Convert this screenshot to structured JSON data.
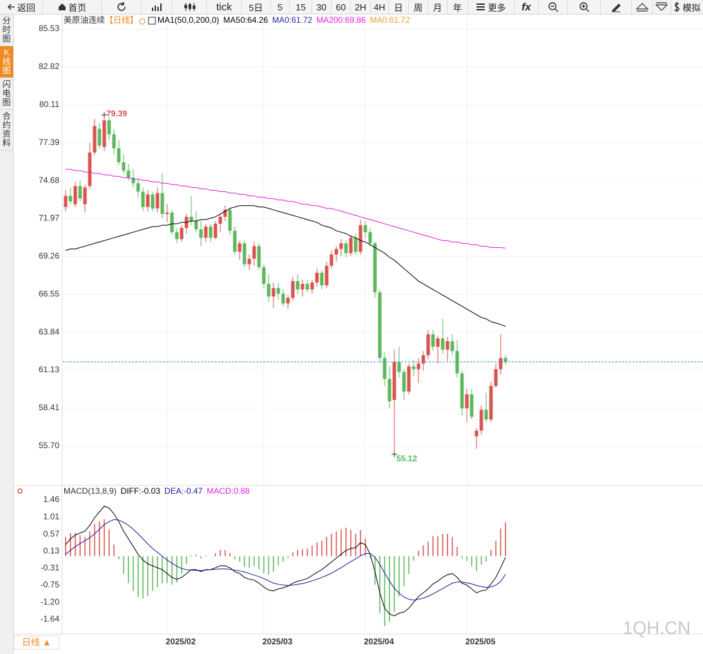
{
  "toolbar": {
    "items": [
      "返回",
      "首页",
      "tick",
      "5日",
      "5",
      "15",
      "30",
      "60",
      "2H",
      "4H",
      "日",
      "周",
      "月",
      "年",
      "更多",
      "fx",
      "模拟"
    ]
  },
  "sidebar": {
    "items": [
      "分时图",
      "K线图",
      "闪电图",
      "合约资料"
    ],
    "active": 1
  },
  "footer": {
    "tab": "日线 ▲",
    "watermark": "1QH.CN"
  },
  "chart_data": [
    {
      "type": "candlestick",
      "title": "美原油连续",
      "period": "【日线】",
      "legend": [
        {
          "text": "MA1(50,0,200,0)",
          "color": "#000000"
        },
        {
          "text": "MA50:64.26",
          "color": "#000000"
        },
        {
          "text": "MA0:61.72",
          "color": "#2a2a9a"
        },
        {
          "text": "MA200:69.86",
          "color": "#e020e0"
        },
        {
          "text": "MA0:61.72",
          "color": "#f0a030"
        }
      ],
      "up_color": "#d9534f",
      "down_color": "#5cb85c",
      "grid": true,
      "ohlc": {
        "open": [
          72.8,
          73.6,
          73.0,
          74.3,
          73.0,
          74.3,
          76.7,
          78.4,
          77.1,
          79.0,
          78.0,
          77.0,
          76.0,
          75.4,
          74.9,
          74.5,
          73.9,
          72.8,
          73.7,
          72.7,
          73.8,
          72.3,
          72.4,
          71.0,
          70.5,
          71.3,
          72.1,
          71.8,
          71.2,
          70.6,
          71.4,
          70.6,
          71.6,
          72.1,
          72.6,
          71.1,
          69.6,
          70.2,
          68.7,
          69.1,
          70.0,
          68.5,
          67.3,
          66.4,
          67.0,
          66.6,
          65.9,
          66.3,
          67.5,
          66.9,
          67.3,
          66.9,
          67.4,
          68.1,
          67.2,
          68.6,
          69.4,
          69.8,
          70.2,
          69.5,
          70.6,
          69.6,
          71.5,
          71.0,
          70.2,
          66.7,
          62.0,
          60.5,
          59.0,
          61.7,
          61.0,
          59.6,
          61.4,
          61.2,
          61.6,
          62.2,
          63.7,
          62.8,
          63.4,
          62.6,
          63.2,
          62.5,
          60.9,
          58.4,
          59.4,
          56.4,
          56.8,
          58.3,
          57.6,
          60.0,
          61.2,
          62.0
        ],
        "high": [
          74.0,
          74.2,
          74.6,
          74.7,
          74.4,
          77.4,
          79.1,
          78.8,
          79.39,
          79.2,
          78.4,
          77.6,
          76.6,
          75.9,
          75.5,
          74.8,
          74.2,
          74.0,
          73.9,
          74.2,
          75.2,
          73.0,
          72.6,
          71.3,
          71.5,
          72.3,
          73.6,
          72.5,
          71.8,
          71.6,
          71.6,
          71.8,
          72.3,
          72.9,
          72.8,
          71.4,
          70.4,
          70.4,
          69.4,
          70.3,
          70.2,
          68.7,
          68.0,
          67.4,
          67.4,
          66.9,
          66.5,
          67.8,
          68.0,
          67.6,
          67.6,
          67.6,
          68.4,
          68.3,
          68.9,
          69.7,
          70.0,
          70.5,
          70.4,
          70.8,
          70.9,
          71.9,
          71.8,
          71.3,
          70.3,
          66.9,
          62.4,
          61.4,
          62.6,
          62.8,
          61.2,
          61.6,
          61.9,
          62.0,
          62.5,
          64.0,
          64.0,
          63.6,
          64.8,
          63.5,
          63.7,
          63.3,
          61.1,
          59.8,
          59.8,
          57.0,
          58.6,
          59.5,
          60.3,
          61.6,
          63.7,
          62.2
        ],
        "low": [
          72.5,
          73.0,
          72.8,
          73.2,
          72.4,
          74.1,
          76.5,
          77.0,
          76.8,
          77.6,
          76.6,
          75.8,
          75.2,
          74.7,
          74.2,
          73.5,
          72.5,
          72.5,
          72.5,
          72.4,
          72.0,
          71.7,
          70.8,
          70.2,
          70.3,
          70.9,
          71.5,
          71.0,
          70.0,
          70.3,
          70.3,
          70.5,
          71.0,
          71.8,
          70.8,
          69.4,
          69.0,
          68.5,
          68.3,
          68.6,
          68.3,
          67.0,
          66.0,
          65.6,
          66.2,
          65.7,
          65.5,
          66.1,
          66.6,
          66.4,
          66.7,
          66.6,
          67.1,
          66.9,
          67.0,
          68.4,
          68.9,
          69.3,
          69.2,
          69.3,
          69.4,
          69.4,
          70.6,
          70.0,
          66.3,
          61.7,
          60.0,
          58.4,
          55.12,
          60.6,
          59.0,
          59.4,
          60.7,
          60.2,
          61.1,
          61.9,
          62.5,
          61.6,
          62.3,
          61.8,
          62.2,
          60.6,
          57.9,
          57.4,
          57.6,
          55.5,
          56.5,
          57.4,
          57.4,
          59.9,
          60.8,
          61.5
        ],
        "close": [
          73.6,
          73.2,
          74.3,
          73.4,
          74.2,
          76.7,
          78.6,
          77.2,
          79.0,
          78.0,
          77.0,
          76.0,
          75.4,
          74.9,
          74.5,
          73.9,
          72.8,
          73.7,
          72.7,
          73.8,
          72.3,
          72.4,
          71.0,
          70.5,
          71.3,
          72.1,
          71.8,
          71.2,
          70.6,
          71.4,
          70.6,
          71.6,
          72.1,
          72.6,
          71.1,
          69.6,
          70.2,
          68.7,
          69.1,
          70.0,
          68.5,
          67.3,
          66.4,
          67.0,
          66.6,
          65.9,
          66.3,
          67.5,
          66.9,
          67.3,
          66.9,
          67.4,
          68.1,
          67.2,
          68.6,
          69.4,
          69.8,
          70.2,
          69.5,
          70.6,
          69.6,
          71.5,
          71.0,
          70.2,
          66.7,
          62.0,
          60.5,
          58.9,
          61.7,
          61.0,
          59.6,
          61.4,
          61.2,
          61.6,
          62.2,
          63.7,
          62.8,
          63.4,
          62.6,
          63.2,
          62.5,
          60.9,
          58.4,
          59.4,
          57.8,
          56.8,
          58.3,
          57.6,
          60.0,
          61.2,
          62.0,
          61.72
        ]
      },
      "series": [
        {
          "color": "#000000",
          "values": [
            69.7,
            69.8,
            69.8,
            69.9,
            70.0,
            70.1,
            70.2,
            70.3,
            70.4,
            70.5,
            70.6,
            70.7,
            70.8,
            70.9,
            71.0,
            71.1,
            71.2,
            71.3,
            71.4,
            71.4,
            71.5,
            71.5,
            71.6,
            71.6,
            71.7,
            71.7,
            71.8,
            71.8,
            71.9,
            71.9,
            72.0,
            72.1,
            72.3,
            72.5,
            72.7,
            72.8,
            72.9,
            72.9,
            72.9,
            72.9,
            72.8,
            72.8,
            72.7,
            72.6,
            72.5,
            72.4,
            72.3,
            72.2,
            72.1,
            72.0,
            71.9,
            71.8,
            71.7,
            71.5,
            71.4,
            71.3,
            71.1,
            71.0,
            70.9,
            70.7,
            70.6,
            70.4,
            70.3,
            70.1,
            69.9,
            69.7,
            69.5,
            69.2,
            69.0,
            68.7,
            68.4,
            68.1,
            67.8,
            67.5,
            67.3,
            67.1,
            66.9,
            66.7,
            66.5,
            66.3,
            66.1,
            65.9,
            65.7,
            65.5,
            65.3,
            65.1,
            64.9,
            64.8,
            64.6,
            64.5,
            64.4,
            64.26
          ]
        },
        {
          "color": "#e020e0",
          "values": [
            75.5,
            75.5,
            75.4,
            75.4,
            75.3,
            75.3,
            75.2,
            75.2,
            75.1,
            75.1,
            75.0,
            75.0,
            74.9,
            74.9,
            74.8,
            74.8,
            74.7,
            74.7,
            74.6,
            74.6,
            74.5,
            74.5,
            74.4,
            74.4,
            74.3,
            74.3,
            74.2,
            74.2,
            74.1,
            74.1,
            74.0,
            74.0,
            73.9,
            73.9,
            73.8,
            73.8,
            73.7,
            73.7,
            73.6,
            73.6,
            73.5,
            73.5,
            73.4,
            73.4,
            73.3,
            73.3,
            73.2,
            73.2,
            73.1,
            73.0,
            73.0,
            72.9,
            72.9,
            72.8,
            72.7,
            72.7,
            72.6,
            72.5,
            72.4,
            72.3,
            72.2,
            72.1,
            72.0,
            71.9,
            71.8,
            71.7,
            71.6,
            71.5,
            71.4,
            71.3,
            71.2,
            71.1,
            71.0,
            70.9,
            70.8,
            70.7,
            70.6,
            70.5,
            70.4,
            70.4,
            70.3,
            70.3,
            70.2,
            70.2,
            70.1,
            70.1,
            70.0,
            70.0,
            69.9,
            69.9,
            69.9,
            69.86
          ]
        }
      ],
      "last_price_line": {
        "color": "#2f8fd8"
      },
      "annotations": [
        {
          "text": "79.39",
          "at": "high",
          "color": "#d9534f"
        },
        {
          "text": "55.12",
          "at": "low",
          "color": "#5cb85c"
        }
      ],
      "ylim": [
        52.93,
        86.62
      ],
      "yticks": [
        85.53,
        82.82,
        80.11,
        77.39,
        74.68,
        71.97,
        69.26,
        66.55,
        63.84,
        61.13,
        58.41,
        {
          "value": 55.7,
          "label": "55.70"
        }
      ]
    },
    {
      "type": "macd",
      "title": "MACD(13,8,9)",
      "legend": [
        {
          "text": "DIFF:-0.03",
          "color": "#000000"
        },
        {
          "text": "DEA:-0.47",
          "color": "#1a1aa0"
        },
        {
          "text": "MACD:0.88",
          "color": "#e020e0"
        }
      ],
      "categories": [
        null,
        null,
        null,
        null,
        null,
        null,
        null,
        null,
        null,
        null,
        null,
        null,
        null,
        null,
        null,
        null,
        null,
        null,
        null,
        null,
        null,
        "2025/02",
        null,
        null,
        null,
        null,
        null,
        null,
        null,
        null,
        null,
        null,
        null,
        null,
        null,
        null,
        null,
        null,
        null,
        null,
        null,
        "2025/03",
        null,
        null,
        null,
        null,
        null,
        null,
        null,
        null,
        null,
        null,
        null,
        null,
        null,
        null,
        null,
        null,
        null,
        null,
        null,
        null,
        "2025/04",
        null,
        null,
        null,
        null,
        null,
        null,
        null,
        null,
        null,
        null,
        null,
        null,
        null,
        null,
        null,
        null,
        null,
        null,
        null,
        null,
        "2025/05",
        null,
        null,
        null,
        null,
        null,
        null,
        null,
        null
      ],
      "series": [
        {
          "color": "#000000",
          "values": [
            0.3,
            0.45,
            0.55,
            0.6,
            0.65,
            0.8,
            1.0,
            1.15,
            1.3,
            1.25,
            1.1,
            0.9,
            0.65,
            0.45,
            0.25,
            0.05,
            -0.1,
            -0.2,
            -0.25,
            -0.3,
            -0.35,
            -0.45,
            -0.55,
            -0.6,
            -0.55,
            -0.45,
            -0.35,
            -0.35,
            -0.4,
            -0.35,
            -0.35,
            -0.3,
            -0.25,
            -0.25,
            -0.3,
            -0.4,
            -0.45,
            -0.55,
            -0.6,
            -0.62,
            -0.7,
            -0.8,
            -0.88,
            -0.9,
            -0.85,
            -0.82,
            -0.78,
            -0.7,
            -0.65,
            -0.62,
            -0.58,
            -0.5,
            -0.42,
            -0.35,
            -0.25,
            -0.15,
            -0.05,
            0.05,
            0.15,
            0.2,
            0.22,
            0.35,
            0.3,
            0.05,
            -0.4,
            -0.95,
            -1.35,
            -1.5,
            -1.55,
            -1.48,
            -1.45,
            -1.35,
            -1.2,
            -1.05,
            -0.95,
            -0.85,
            -0.72,
            -0.65,
            -0.55,
            -0.48,
            -0.45,
            -0.55,
            -0.7,
            -0.75,
            -0.85,
            -0.95,
            -0.9,
            -0.88,
            -0.72,
            -0.55,
            -0.3,
            -0.03
          ]
        },
        {
          "color": "#1a1aa0",
          "values": [
            0.05,
            0.15,
            0.25,
            0.33,
            0.4,
            0.48,
            0.58,
            0.7,
            0.82,
            0.9,
            0.95,
            0.94,
            0.88,
            0.8,
            0.7,
            0.58,
            0.45,
            0.32,
            0.2,
            0.1,
            0.0,
            -0.1,
            -0.18,
            -0.26,
            -0.32,
            -0.35,
            -0.36,
            -0.37,
            -0.37,
            -0.36,
            -0.35,
            -0.34,
            -0.33,
            -0.33,
            -0.34,
            -0.36,
            -0.38,
            -0.41,
            -0.45,
            -0.49,
            -0.53,
            -0.58,
            -0.64,
            -0.7,
            -0.73,
            -0.75,
            -0.76,
            -0.75,
            -0.73,
            -0.71,
            -0.68,
            -0.64,
            -0.6,
            -0.55,
            -0.5,
            -0.44,
            -0.37,
            -0.3,
            -0.22,
            -0.14,
            -0.07,
            0.01,
            0.07,
            0.07,
            -0.03,
            -0.21,
            -0.44,
            -0.65,
            -0.83,
            -0.96,
            -1.06,
            -1.12,
            -1.14,
            -1.12,
            -1.09,
            -1.04,
            -0.98,
            -0.91,
            -0.84,
            -0.77,
            -0.7,
            -0.67,
            -0.67,
            -0.69,
            -0.72,
            -0.76,
            -0.79,
            -0.81,
            -0.8,
            -0.75,
            -0.66,
            -0.47
          ]
        }
      ],
      "histogram": {
        "up_color": "#d9534f",
        "down_color": "#5cb85c",
        "values": [
          0.5,
          0.6,
          0.6,
          0.54,
          0.5,
          0.64,
          0.84,
          0.9,
          0.96,
          0.7,
          0.3,
          -0.08,
          -0.46,
          -0.7,
          -0.9,
          -1.06,
          -1.1,
          -1.04,
          -0.9,
          -0.8,
          -0.7,
          -0.7,
          -0.74,
          -0.68,
          -0.46,
          -0.2,
          0.02,
          0.04,
          -0.06,
          0.02,
          0.0,
          0.08,
          0.16,
          0.16,
          0.08,
          -0.08,
          -0.14,
          -0.28,
          -0.3,
          -0.26,
          -0.34,
          -0.44,
          -0.48,
          -0.4,
          -0.24,
          -0.14,
          -0.04,
          0.1,
          0.16,
          0.18,
          0.2,
          0.28,
          0.36,
          0.4,
          0.5,
          0.58,
          0.64,
          0.7,
          0.74,
          0.68,
          0.58,
          0.68,
          0.46,
          -0.04,
          -0.74,
          -1.48,
          -1.82,
          -1.7,
          -1.44,
          -1.04,
          -0.78,
          -0.46,
          -0.12,
          0.14,
          0.28,
          0.38,
          0.52,
          0.52,
          0.58,
          0.58,
          0.5,
          0.24,
          -0.06,
          -0.12,
          -0.26,
          -0.38,
          -0.22,
          -0.14,
          0.16,
          0.4,
          0.72,
          0.88
        ]
      },
      "ylim": [
        -2.02,
        1.8
      ],
      "yticks": [
        1.46,
        1.01,
        0.57,
        0.13,
        -0.31,
        -0.75,
        {
          "value": -1.2,
          "label": "-1.20"
        },
        -1.64
      ]
    }
  ]
}
